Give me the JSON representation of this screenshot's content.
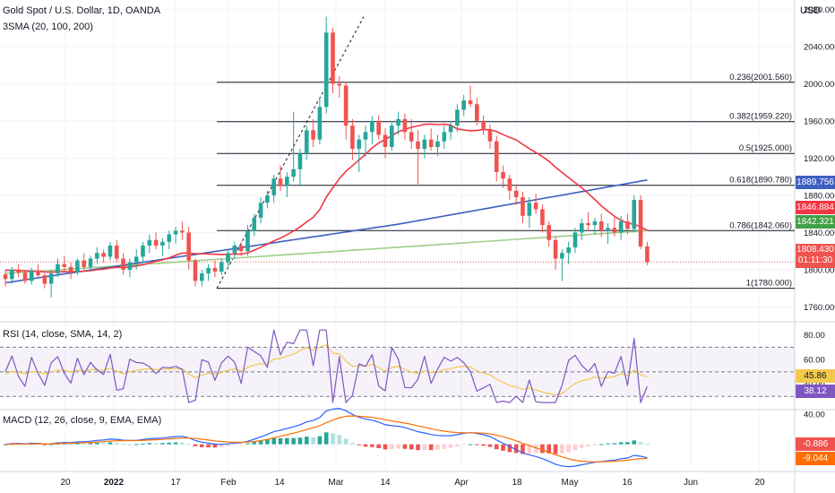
{
  "header": {
    "symbol_title": "Gold Spot / U.S. Dollar, 1D, OANDA",
    "indicator_label": "3SMA (20, 100, 200)",
    "currency": "USD"
  },
  "colors": {
    "up": "#26a69a",
    "down": "#ef5350",
    "sma20": "#f23645",
    "sma100": "#3f5fbf",
    "sma200": "#9ccf8a",
    "rsi": "#7e57c2",
    "rsi_ma": "#f2c94c",
    "macd": "#2962ff",
    "signal": "#ff6d00",
    "fib": "#131722"
  },
  "price_axis": {
    "ticks": [
      "2080.000",
      "2040.000",
      "2000.000",
      "1960.000",
      "1920.000",
      "1880.000",
      "1840.000",
      "1800.000",
      "1760.000"
    ]
  },
  "fib_levels": [
    {
      "label": "0.236(2001.560)",
      "value": 2001.56
    },
    {
      "label": "0.382(1959.220)",
      "value": 1959.22
    },
    {
      "label": "0.5(1925.000)",
      "value": 1925.0
    },
    {
      "label": "0.618(1890.780)",
      "value": 1890.78
    },
    {
      "label": "0.786(1842.060)",
      "value": 1842.06
    },
    {
      "label": "1(1780.000)",
      "value": 1780.0
    }
  ],
  "price_tags": {
    "sma100": "1889.756",
    "sma20": "1846.884",
    "sma200": "1842.321",
    "last_price": "1808.430",
    "countdown": "01:11:30"
  },
  "rsi_pane": {
    "label": "RSI (14, close, SMA, 14, 2)",
    "ticks": [
      "80.00",
      "60.00",
      "40.00"
    ],
    "ma_value": "45.86",
    "rsi_value": "38.12"
  },
  "macd_pane": {
    "label": "MACD (12, 26, close, 9, EMA, EMA)",
    "ticks": [
      "40.00"
    ],
    "signal_value": "-0.886",
    "macd_value": "-9.044"
  },
  "time_axis": {
    "labels": [
      "20",
      "2022",
      "17",
      "Feb",
      "14",
      "Mar",
      "14",
      "Apr",
      "18",
      "May",
      "16",
      "Jun",
      "20"
    ]
  },
  "chart_data": {
    "type": "candlestick",
    "title": "Gold Spot / U.S. Dollar, 1D, OANDA",
    "ylabel": "USD",
    "ylim": [
      1745,
      2090
    ],
    "candles_approx": [
      [
        1795,
        1800,
        1782,
        1790
      ],
      [
        1790,
        1803,
        1785,
        1800
      ],
      [
        1800,
        1806,
        1792,
        1797
      ],
      [
        1797,
        1800,
        1785,
        1788
      ],
      [
        1788,
        1802,
        1784,
        1799
      ],
      [
        1799,
        1806,
        1792,
        1794
      ],
      [
        1794,
        1796,
        1780,
        1785
      ],
      [
        1785,
        1800,
        1770,
        1796
      ],
      [
        1796,
        1812,
        1792,
        1806
      ],
      [
        1806,
        1815,
        1798,
        1803
      ],
      [
        1803,
        1808,
        1790,
        1797
      ],
      [
        1797,
        1812,
        1794,
        1810
      ],
      [
        1810,
        1818,
        1800,
        1803
      ],
      [
        1803,
        1815,
        1798,
        1812
      ],
      [
        1812,
        1824,
        1806,
        1818
      ],
      [
        1818,
        1822,
        1808,
        1814
      ],
      [
        1814,
        1830,
        1810,
        1826
      ],
      [
        1826,
        1832,
        1808,
        1812
      ],
      [
        1812,
        1818,
        1795,
        1800
      ],
      [
        1800,
        1812,
        1792,
        1808
      ],
      [
        1808,
        1822,
        1800,
        1814
      ],
      [
        1814,
        1830,
        1808,
        1826
      ],
      [
        1826,
        1838,
        1818,
        1832
      ],
      [
        1832,
        1840,
        1822,
        1826
      ],
      [
        1826,
        1834,
        1815,
        1830
      ],
      [
        1830,
        1842,
        1822,
        1838
      ],
      [
        1838,
        1846,
        1828,
        1842
      ],
      [
        1842,
        1852,
        1832,
        1840
      ],
      [
        1840,
        1846,
        1800,
        1810
      ],
      [
        1810,
        1812,
        1782,
        1788
      ],
      [
        1788,
        1800,
        1782,
        1796
      ],
      [
        1796,
        1806,
        1788,
        1802
      ],
      [
        1802,
        1810,
        1792,
        1798
      ],
      [
        1798,
        1812,
        1794,
        1808
      ],
      [
        1808,
        1822,
        1802,
        1818
      ],
      [
        1818,
        1830,
        1812,
        1826
      ],
      [
        1826,
        1830,
        1815,
        1820
      ],
      [
        1820,
        1848,
        1815,
        1842
      ],
      [
        1842,
        1860,
        1836,
        1856
      ],
      [
        1856,
        1878,
        1850,
        1872
      ],
      [
        1872,
        1885,
        1866,
        1880
      ],
      [
        1880,
        1902,
        1872,
        1898
      ],
      [
        1898,
        1912,
        1885,
        1890
      ],
      [
        1890,
        1905,
        1878,
        1900
      ],
      [
        1900,
        1970,
        1895,
        1908
      ],
      [
        1908,
        1930,
        1890,
        1925
      ],
      [
        1925,
        1955,
        1918,
        1950
      ],
      [
        1950,
        1962,
        1932,
        1940
      ],
      [
        1940,
        1985,
        1935,
        1975
      ],
      [
        1975,
        2072,
        1968,
        2055
      ],
      [
        2055,
        2060,
        1990,
        2000
      ],
      [
        2000,
        2008,
        1985,
        1998
      ],
      [
        1998,
        2002,
        1940,
        1955
      ],
      [
        1955,
        1962,
        1918,
        1930
      ],
      [
        1930,
        1945,
        1905,
        1940
      ],
      [
        1940,
        1955,
        1922,
        1948
      ],
      [
        1948,
        1965,
        1935,
        1960
      ],
      [
        1960,
        1966,
        1940,
        1945
      ],
      [
        1945,
        1952,
        1920,
        1932
      ],
      [
        1932,
        1958,
        1928,
        1955
      ],
      [
        1955,
        1970,
        1945,
        1962
      ],
      [
        1962,
        1968,
        1940,
        1948
      ],
      [
        1948,
        1962,
        1930,
        1938
      ],
      [
        1938,
        1950,
        1890,
        1930
      ],
      [
        1930,
        1945,
        1920,
        1940
      ],
      [
        1940,
        1952,
        1928,
        1932
      ],
      [
        1932,
        1945,
        1922,
        1938
      ],
      [
        1938,
        1955,
        1930,
        1948
      ],
      [
        1948,
        1960,
        1940,
        1955
      ],
      [
        1955,
        1978,
        1948,
        1972
      ],
      [
        1972,
        1988,
        1965,
        1982
      ],
      [
        1982,
        1998,
        1975,
        1978
      ],
      [
        1978,
        1985,
        1955,
        1960
      ],
      [
        1960,
        1966,
        1945,
        1950
      ],
      [
        1950,
        1956,
        1930,
        1938
      ],
      [
        1938,
        1944,
        1895,
        1905
      ],
      [
        1905,
        1912,
        1888,
        1898
      ],
      [
        1898,
        1902,
        1875,
        1885
      ],
      [
        1885,
        1892,
        1870,
        1878
      ],
      [
        1878,
        1884,
        1850,
        1858
      ],
      [
        1858,
        1878,
        1845,
        1872
      ],
      [
        1872,
        1882,
        1860,
        1865
      ],
      [
        1865,
        1870,
        1840,
        1848
      ],
      [
        1848,
        1852,
        1825,
        1832
      ],
      [
        1832,
        1836,
        1800,
        1812
      ],
      [
        1812,
        1822,
        1788,
        1818
      ],
      [
        1818,
        1830,
        1806,
        1824
      ],
      [
        1824,
        1845,
        1818,
        1840
      ],
      [
        1840,
        1855,
        1832,
        1850
      ],
      [
        1850,
        1862,
        1842,
        1848
      ],
      [
        1848,
        1856,
        1838,
        1852
      ],
      [
        1852,
        1860,
        1835,
        1842
      ],
      [
        1842,
        1850,
        1828,
        1845
      ],
      [
        1845,
        1856,
        1836,
        1840
      ],
      [
        1840,
        1858,
        1832,
        1852
      ],
      [
        1852,
        1860,
        1838,
        1844
      ],
      [
        1844,
        1880,
        1840,
        1875
      ],
      [
        1875,
        1880,
        1822,
        1825
      ],
      [
        1825,
        1830,
        1805,
        1808
      ]
    ],
    "series": [
      {
        "name": "SMA 20",
        "color": "#f23645"
      },
      {
        "name": "SMA 100",
        "color": "#3f5fbf"
      },
      {
        "name": "SMA 200",
        "color": "#9ccf8a"
      }
    ],
    "rsi": {
      "ylim": [
        20,
        90
      ],
      "bands": [
        70,
        30
      ],
      "last_rsi": 38.12,
      "last_ma": 45.86
    },
    "macd": {
      "last_macd": -9.044,
      "last_signal": -0.886
    }
  }
}
